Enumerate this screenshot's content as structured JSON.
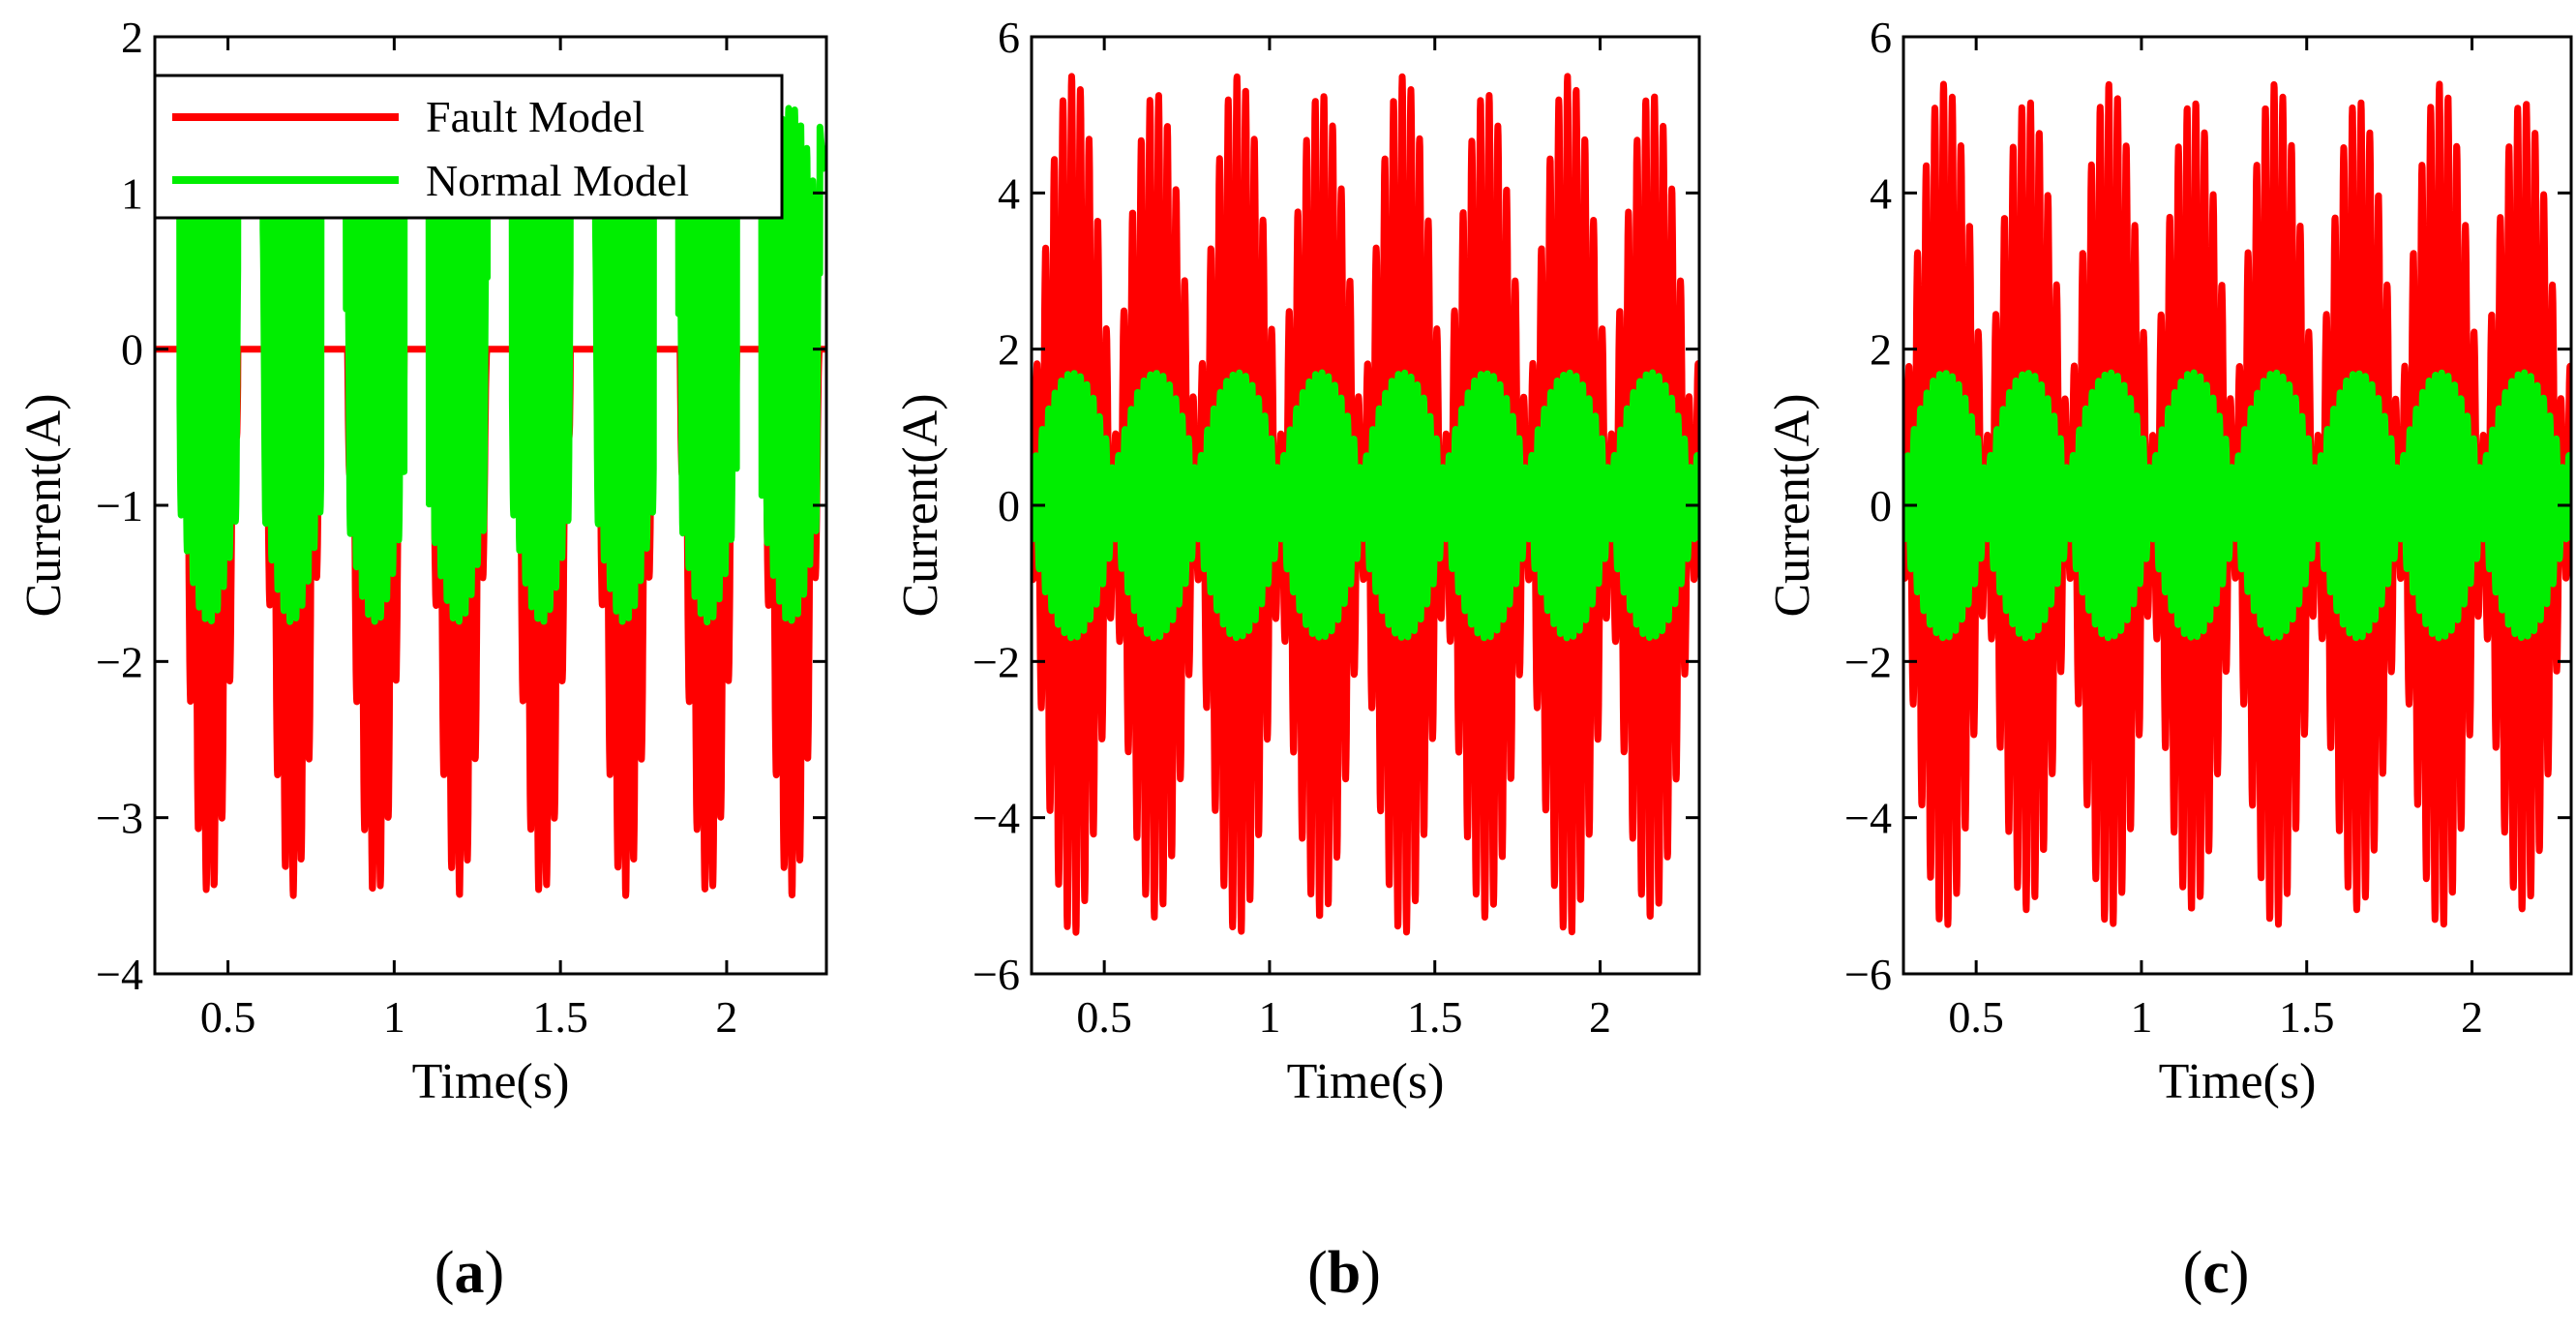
{
  "colors": {
    "fault": "#ff0000",
    "normal": "#00ee00"
  },
  "legend": {
    "fault_label": "Fault Model",
    "normal_label": "Normal Model"
  },
  "chart_data": [
    {
      "type": "line",
      "panel": "a",
      "caption": {
        "open": "(",
        "letter": "a",
        "close": ")"
      },
      "xlabel": "Time(s)",
      "ylabel": "Current(A)",
      "xlim": [
        0.28,
        2.3
      ],
      "ylim": [
        -4,
        2
      ],
      "xticks": [
        0.5,
        1,
        1.5,
        2
      ],
      "xtick_labels": [
        "0.5",
        "1",
        "1.5",
        "2"
      ],
      "yticks": [
        -4,
        -3,
        -2,
        -1,
        0,
        1,
        2
      ],
      "ytick_labels": [
        "−4",
        "−3",
        "−2",
        "−1",
        "0",
        "1",
        "2"
      ],
      "series": [
        {
          "name": "Fault Model",
          "kind": "fault_a",
          "min": -3.5,
          "max": 0,
          "period": 0.25
        },
        {
          "name": "Normal Model",
          "kind": "normal_a",
          "min": -1.7,
          "max": 1.6,
          "period": 0.25
        }
      ],
      "legend": "top-left"
    },
    {
      "type": "line",
      "panel": "b",
      "caption": {
        "open": "(",
        "letter": "b",
        "close": ")"
      },
      "xlabel": "Time(s)",
      "ylabel": "Current(A)",
      "xlim": [
        0.28,
        2.3
      ],
      "ylim": [
        -6,
        6
      ],
      "xticks": [
        0.5,
        1,
        1.5,
        2
      ],
      "xtick_labels": [
        "0.5",
        "1",
        "1.5",
        "2"
      ],
      "yticks": [
        -6,
        -4,
        -2,
        0,
        2,
        4,
        6
      ],
      "ytick_labels": [
        "−6",
        "−4",
        "−2",
        "0",
        "2",
        "4",
        "6"
      ],
      "series": [
        {
          "name": "Fault Model",
          "kind": "fault_bc",
          "min": -5.4,
          "max": 5.5,
          "period": 0.25
        },
        {
          "name": "Normal Model",
          "kind": "normal_bc",
          "min": -1.7,
          "max": 1.7,
          "period": 0.25
        }
      ]
    },
    {
      "type": "line",
      "panel": "c",
      "caption": {
        "open": "(",
        "letter": "c",
        "close": ")"
      },
      "xlabel": "Time(s)",
      "ylabel": "Current(A)",
      "xlim": [
        0.28,
        2.3
      ],
      "ylim": [
        -6,
        6
      ],
      "xticks": [
        0.5,
        1,
        1.5,
        2
      ],
      "xtick_labels": [
        "0.5",
        "1",
        "1.5",
        "2"
      ],
      "yticks": [
        -6,
        -4,
        -2,
        0,
        2,
        4,
        6
      ],
      "ytick_labels": [
        "−6",
        "−4",
        "−2",
        "0",
        "2",
        "4",
        "6"
      ],
      "series": [
        {
          "name": "Fault Model",
          "kind": "fault_bc",
          "min": -5.4,
          "max": 5.4,
          "period": 0.25
        },
        {
          "name": "Normal Model",
          "kind": "normal_bc",
          "min": -1.7,
          "max": 1.7,
          "period": 0.25
        }
      ]
    }
  ]
}
